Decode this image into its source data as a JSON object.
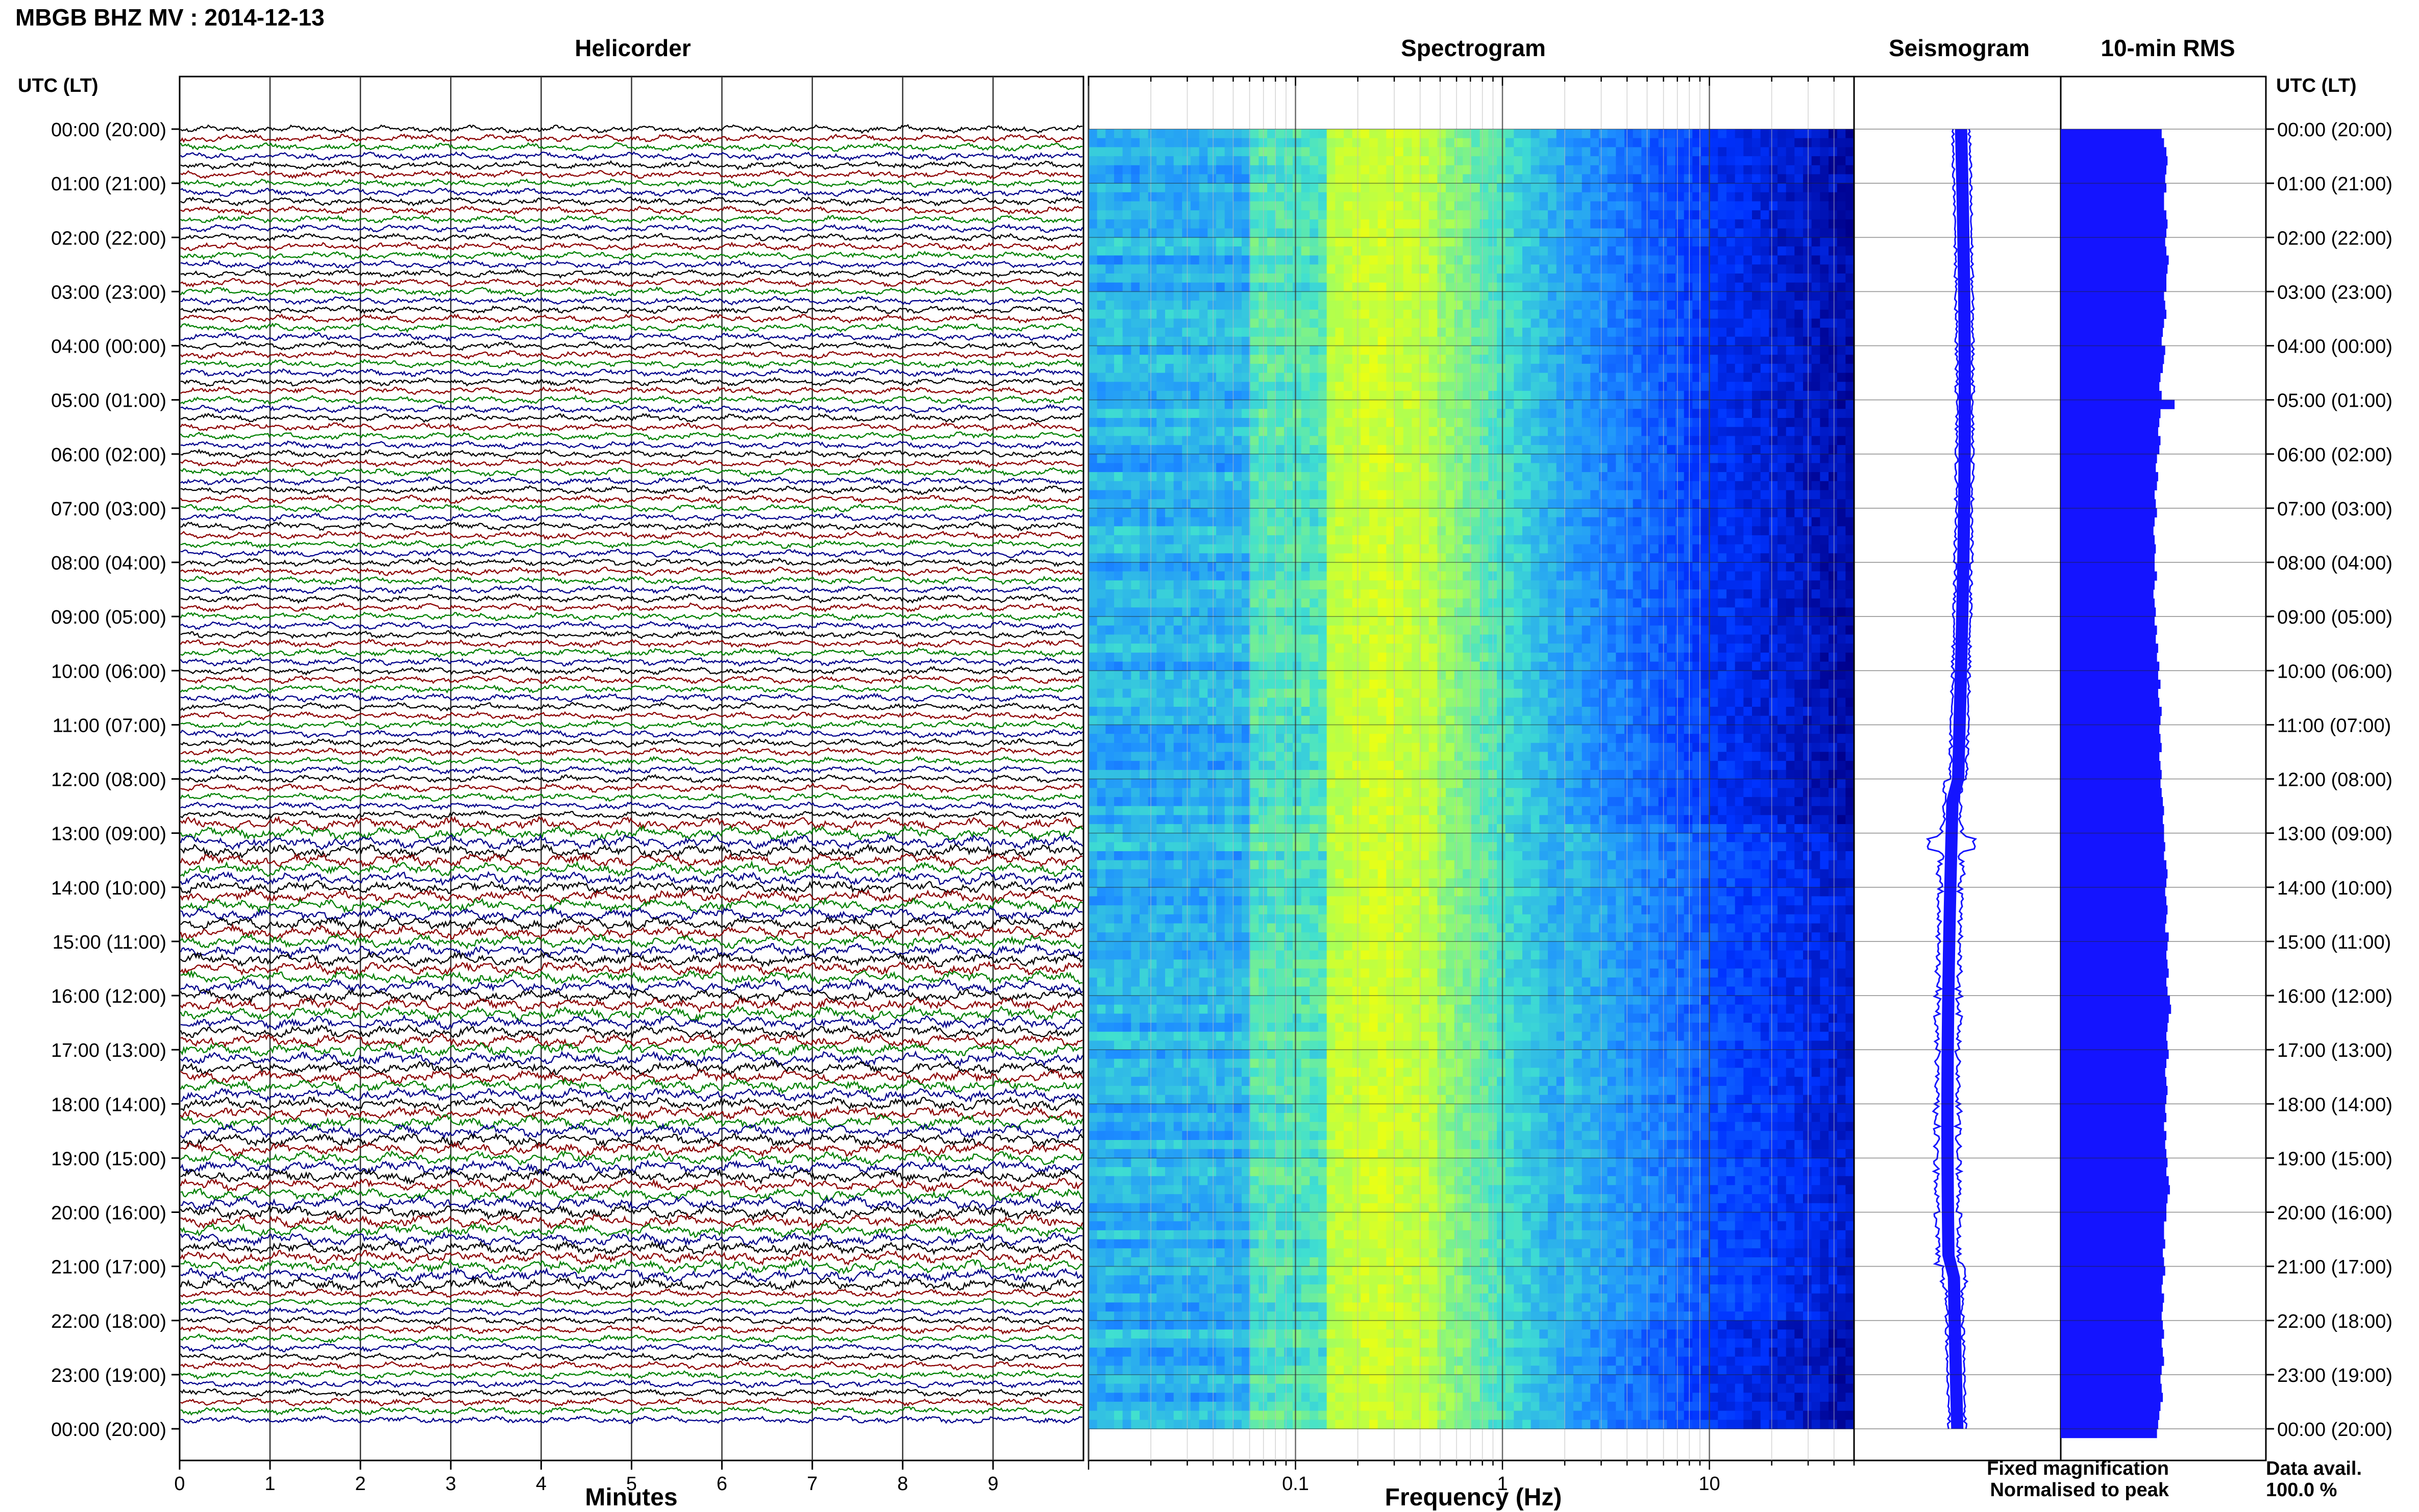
{
  "figure": {
    "title": "MBGB BHZ MV : 2014-12-13",
    "panel_titles": {
      "helicorder": "Helicorder",
      "spectrogram": "Spectrogram",
      "seismogram": "Seismogram",
      "rms": "10-min RMS"
    },
    "utc_header": "UTC (LT)",
    "legend": {
      "fixed": "Fixed magnification",
      "normalised": "Normalised to peak",
      "fixed_color": "#1414ff",
      "normalised_color": "#ff1a1a"
    },
    "data_avail": {
      "label": "Data avail.",
      "value": "100.0 %"
    },
    "colors": {
      "trace_cycle": [
        "#000000",
        "#8b0000",
        "#008000",
        "#00008b"
      ],
      "spectro_colormap": [
        "#00008b",
        "#0033ff",
        "#1e90ff",
        "#40e0d0",
        "#aaff55",
        "#ffff00"
      ],
      "seismogram": "#1414ff",
      "rms_bar": "#1414ff"
    }
  },
  "chart_data": [
    {
      "type": "line",
      "name": "helicorder",
      "title": "Helicorder",
      "xlabel": "Minutes",
      "ylabel": "UTC (LT)",
      "x_ticks": [
        0,
        1,
        2,
        3,
        4,
        5,
        6,
        7,
        8,
        9
      ],
      "xlim": [
        0,
        10
      ],
      "y_ticks": [
        "00:00 (20:00)",
        "01:00 (21:00)",
        "02:00 (22:00)",
        "03:00 (23:00)",
        "04:00 (00:00)",
        "05:00 (01:00)",
        "06:00 (02:00)",
        "07:00 (03:00)",
        "08:00 (04:00)",
        "09:00 (05:00)",
        "10:00 (06:00)",
        "11:00 (07:00)",
        "12:00 (08:00)",
        "13:00 (09:00)",
        "14:00 (10:00)",
        "15:00 (11:00)",
        "16:00 (12:00)",
        "17:00 (13:00)",
        "18:00 (14:00)",
        "19:00 (15:00)",
        "20:00 (16:00)",
        "21:00 (17:00)",
        "22:00 (18:00)",
        "23:00 (19:00)",
        "00:00 (20:00)"
      ],
      "traces_per_hour": 6,
      "grid": true
    },
    {
      "type": "heatmap",
      "name": "spectrogram",
      "title": "Spectrogram",
      "xlabel": "Frequency (Hz)",
      "x_scale": "log",
      "xlim": [
        0.01,
        50
      ],
      "x_ticks": [
        0.1,
        1,
        10
      ],
      "x_tick_labels": [
        "0.1",
        "1",
        "10"
      ],
      "grid": true
    },
    {
      "type": "line",
      "name": "seismogram",
      "title": "Seismogram",
      "grid": true
    },
    {
      "type": "bar",
      "name": "rms",
      "title": "10-min RMS",
      "orientation": "horizontal",
      "bins_per_hour": 6,
      "relative_values": [
        0.86,
        0.88,
        0.9,
        0.91,
        0.9,
        0.89,
        0.9,
        0.88,
        0.88,
        0.9,
        0.91,
        0.9,
        0.89,
        0.9,
        0.92,
        0.91,
        0.9,
        0.9,
        0.88,
        0.89,
        0.9,
        0.88,
        0.87,
        0.86,
        0.89,
        0.88,
        0.87,
        0.85,
        0.84,
        0.86,
        0.97,
        0.85,
        0.84,
        0.83,
        0.85,
        0.84,
        0.82,
        0.81,
        0.83,
        0.82,
        0.8,
        0.81,
        0.82,
        0.8,
        0.79,
        0.8,
        0.81,
        0.8,
        0.8,
        0.82,
        0.8,
        0.79,
        0.8,
        0.81,
        0.8,
        0.82,
        0.81,
        0.83,
        0.82,
        0.84,
        0.83,
        0.85,
        0.83,
        0.84,
        0.86,
        0.85,
        0.84,
        0.85,
        0.86,
        0.84,
        0.85,
        0.86,
        0.85,
        0.86,
        0.87,
        0.88,
        0.87,
        0.88,
        0.88,
        0.89,
        0.88,
        0.9,
        0.91,
        0.9,
        0.89,
        0.9,
        0.91,
        0.9,
        0.89,
        0.92,
        0.91,
        0.9,
        0.91,
        0.92,
        0.9,
        0.91,
        0.93,
        0.94,
        0.92,
        0.91,
        0.9,
        0.91,
        0.92,
        0.9,
        0.89,
        0.9,
        0.91,
        0.9,
        0.89,
        0.9,
        0.88,
        0.9,
        0.89,
        0.9,
        0.91,
        0.9,
        0.92,
        0.93,
        0.91,
        0.9,
        0.9,
        0.88,
        0.88,
        0.89,
        0.87,
        0.88,
        0.89,
        0.87,
        0.86,
        0.88,
        0.87,
        0.86,
        0.87,
        0.88,
        0.86,
        0.87,
        0.88,
        0.86,
        0.85,
        0.86,
        0.87,
        0.85,
        0.84,
        0.83,
        0.82
      ],
      "grid": true
    }
  ]
}
